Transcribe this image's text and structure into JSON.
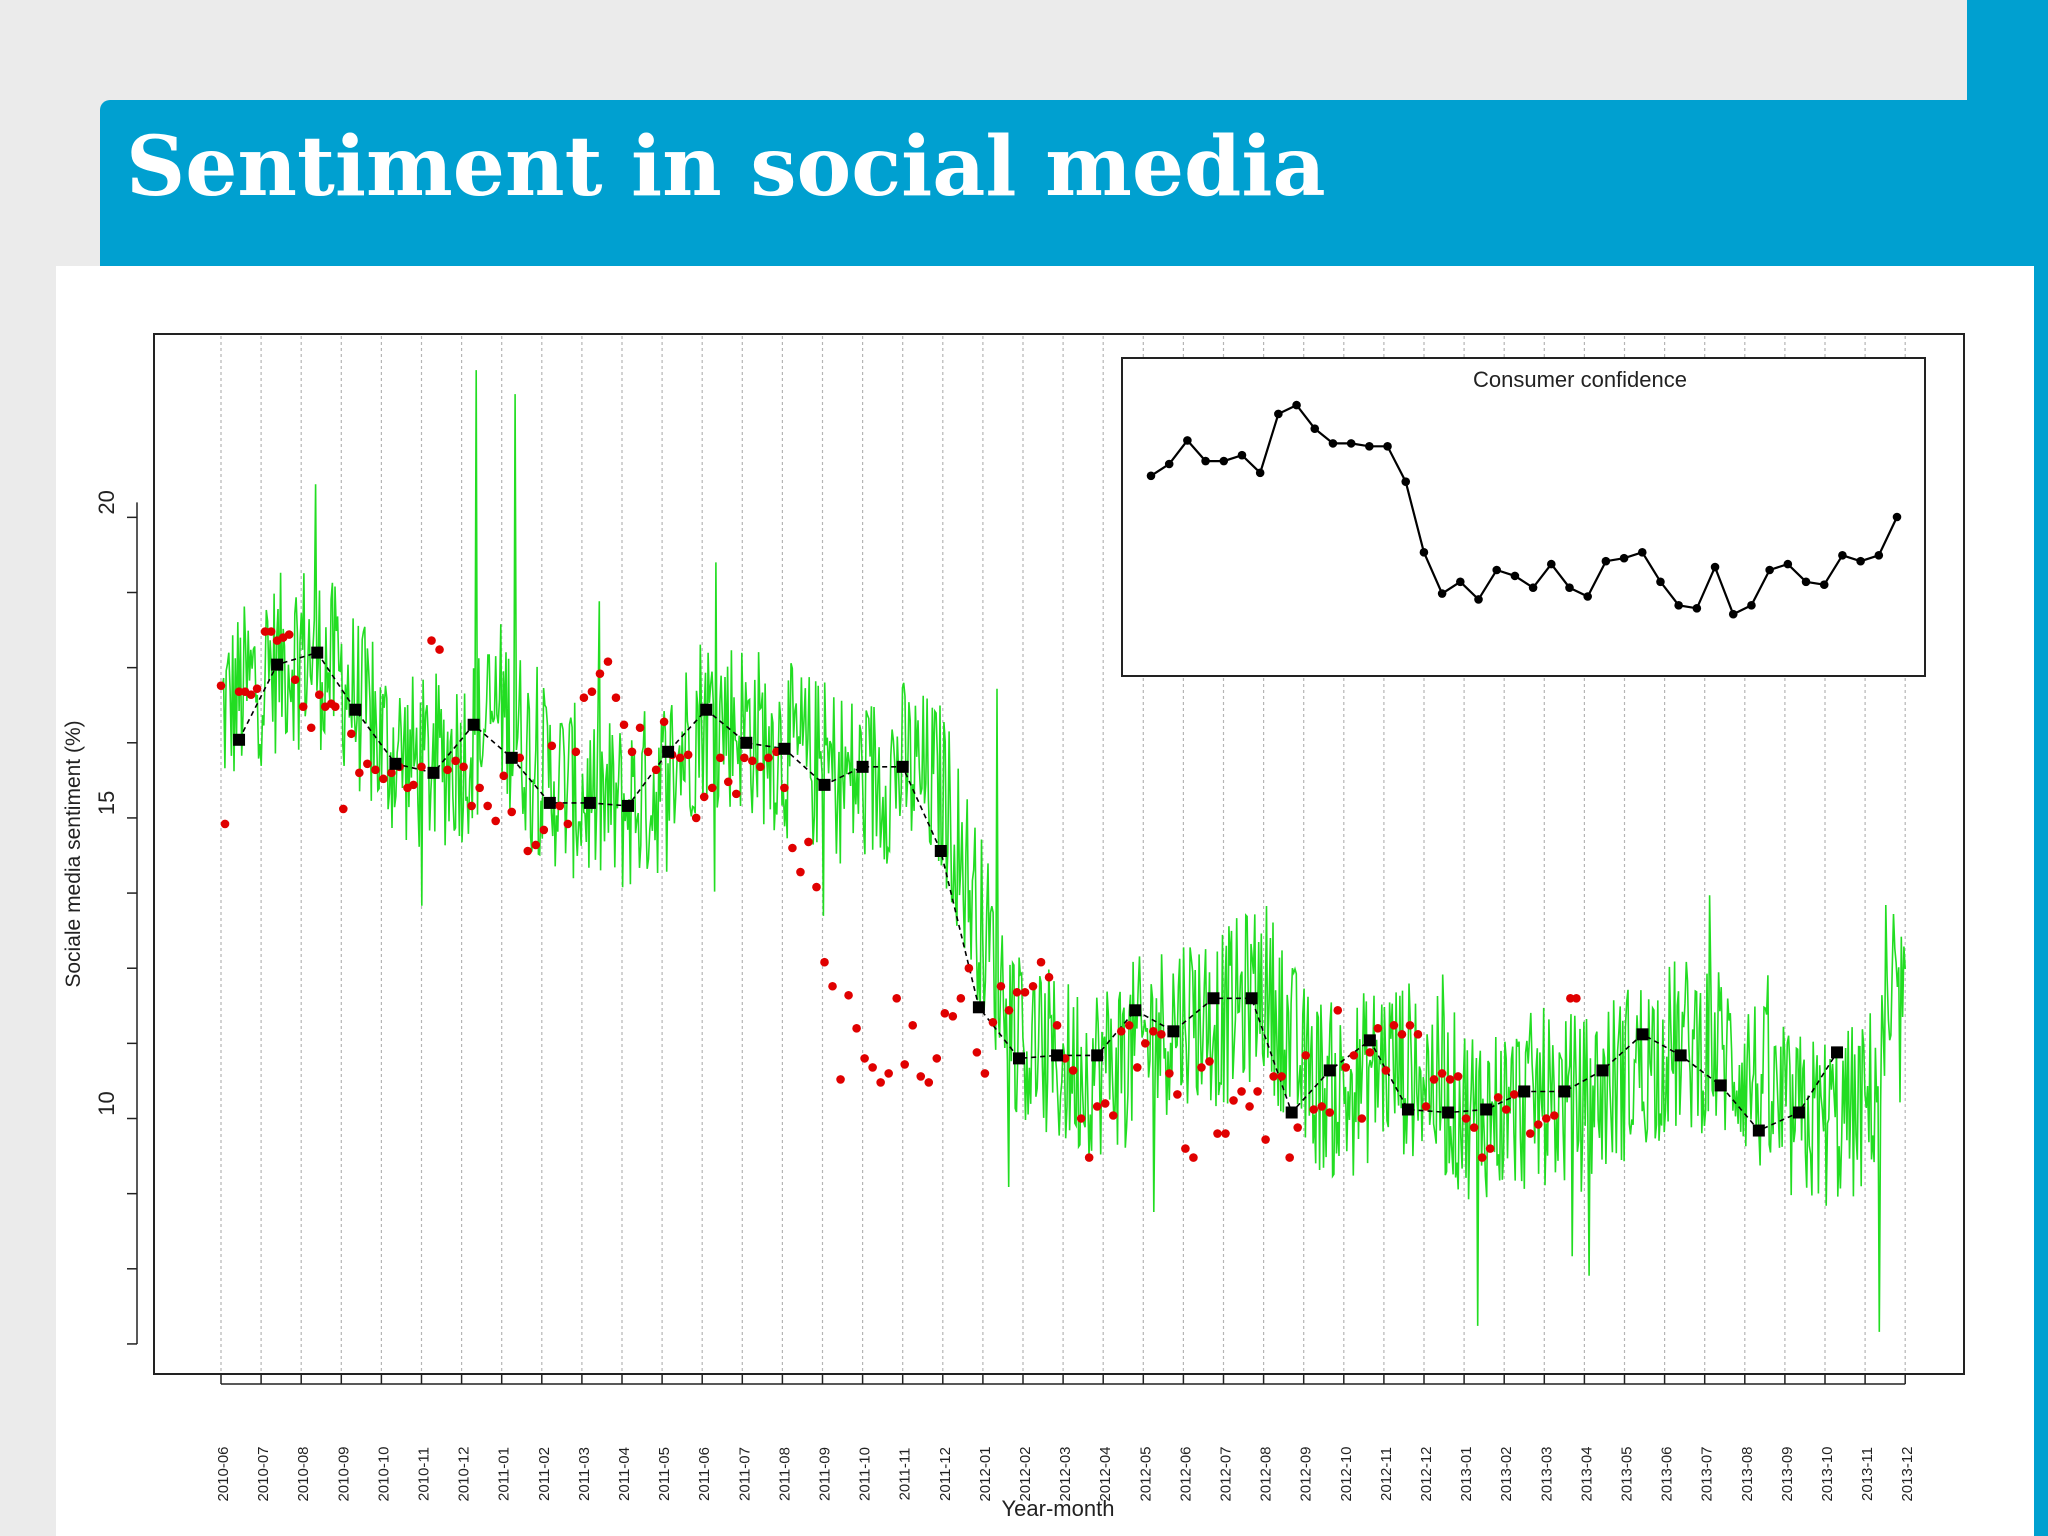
{
  "slide": {
    "title": "Sentiment in social media",
    "colors": {
      "banner": "#00a0d0",
      "background": "#ebebeb",
      "panel": "#ffffff"
    }
  },
  "chart_data": [
    {
      "type": "line",
      "role": "main",
      "title": "",
      "xlabel": "Year-month",
      "ylabel": "Sociale media sentiment (%)",
      "ylim": [
        5.5,
        22.8
      ],
      "yticks": [
        10,
        15,
        20
      ],
      "categories": [
        "2010-06",
        "2010-07",
        "2010-08",
        "2010-09",
        "2010-10",
        "2010-11",
        "2010-12",
        "2011-01",
        "2011-02",
        "2011-03",
        "2011-04",
        "2011-05",
        "2011-06",
        "2011-07",
        "2011-08",
        "2011-09",
        "2011-10",
        "2011-11",
        "2011-12",
        "2012-01",
        "2012-02",
        "2012-03",
        "2012-04",
        "2012-05",
        "2012-06",
        "2012-07",
        "2012-08",
        "2012-09",
        "2012-10",
        "2012-11",
        "2012-12",
        "2013-01",
        "2013-02",
        "2013-03",
        "2013-04",
        "2013-05",
        "2013-06",
        "2013-07",
        "2013-08",
        "2013-09",
        "2013-10",
        "2013-11",
        "2013-12"
      ],
      "grid": "vertical dotted lines at each month",
      "series": [
        {
          "style": "daily values, thin green line",
          "color": "#22dd22",
          "monthly_levels": [
            16.5,
            17.1,
            17.6,
            17.1,
            16.0,
            15.6,
            15.8,
            16.6,
            15.5,
            15.1,
            14.9,
            15.3,
            16.5,
            16.3,
            15.9,
            15.6,
            15.3,
            15.6,
            15.2,
            12.9,
            11.0,
            10.6,
            10.6,
            11.0,
            11.5,
            11.4,
            12.0,
            10.5,
            10.1,
            10.7,
            10.5,
            9.9,
            9.9,
            10.1,
            10.0,
            10.5,
            10.9,
            11.0,
            10.6,
            9.7,
            9.7,
            9.9,
            11.7
          ],
          "daily_spread": 1.5,
          "spikes": [
            {
              "x": "2010-12",
              "value": 22.2
            },
            {
              "x": "2011-01",
              "value": 21.8
            },
            {
              "x": "2010-08",
              "value": 20.3
            },
            {
              "x": "2011-06",
              "value": 19.0
            },
            {
              "x": "2012-01",
              "value": 16.9
            },
            {
              "x": "2013-01",
              "value": 6.3
            },
            {
              "x": "2013-11",
              "value": 6.2
            }
          ]
        },
        {
          "style": "weekly averages, red dots",
          "color": "#e00000",
          "values": [
            [
              0.0,
              16.95
            ],
            [
              0.1,
              14.65
            ],
            [
              0.45,
              16.85
            ],
            [
              0.6,
              16.85
            ],
            [
              0.75,
              16.8
            ],
            [
              0.9,
              16.9
            ],
            [
              1.1,
              17.85
            ],
            [
              1.25,
              17.85
            ],
            [
              1.4,
              17.7
            ],
            [
              1.55,
              17.75
            ],
            [
              1.7,
              17.8
            ],
            [
              1.85,
              17.05
            ],
            [
              2.05,
              16.6
            ],
            [
              2.25,
              16.25
            ],
            [
              2.45,
              16.8
            ],
            [
              2.6,
              16.6
            ],
            [
              2.75,
              16.65
            ],
            [
              2.85,
              16.6
            ],
            [
              3.05,
              14.9
            ],
            [
              3.25,
              16.15
            ],
            [
              3.45,
              15.5
            ],
            [
              3.65,
              15.65
            ],
            [
              3.85,
              15.55
            ],
            [
              4.05,
              15.4
            ],
            [
              4.25,
              15.5
            ],
            [
              4.45,
              15.6
            ],
            [
              4.65,
              15.25
            ],
            [
              4.8,
              15.3
            ],
            [
              5.0,
              15.6
            ],
            [
              5.25,
              17.7
            ],
            [
              5.45,
              17.55
            ],
            [
              5.65,
              15.55
            ],
            [
              5.85,
              15.7
            ],
            [
              6.05,
              15.6
            ],
            [
              6.25,
              14.95
            ],
            [
              6.45,
              15.25
            ],
            [
              6.65,
              14.95
            ],
            [
              6.85,
              14.7
            ],
            [
              7.05,
              15.45
            ],
            [
              7.25,
              14.85
            ],
            [
              7.45,
              15.75
            ],
            [
              7.65,
              14.2
            ],
            [
              7.85,
              14.3
            ],
            [
              8.05,
              14.55
            ],
            [
              8.25,
              15.95
            ],
            [
              8.45,
              14.95
            ],
            [
              8.65,
              14.65
            ],
            [
              8.85,
              15.85
            ],
            [
              9.05,
              16.75
            ],
            [
              9.25,
              16.85
            ],
            [
              9.45,
              17.15
            ],
            [
              9.65,
              17.35
            ],
            [
              9.85,
              16.75
            ],
            [
              10.05,
              16.3
            ],
            [
              10.25,
              15.85
            ],
            [
              10.45,
              16.25
            ],
            [
              10.65,
              15.85
            ],
            [
              10.85,
              15.55
            ],
            [
              11.05,
              16.35
            ],
            [
              11.25,
              15.8
            ],
            [
              11.45,
              15.75
            ],
            [
              11.65,
              15.8
            ],
            [
              11.85,
              14.75
            ],
            [
              12.05,
              15.1
            ],
            [
              12.25,
              15.25
            ],
            [
              12.45,
              15.75
            ],
            [
              12.65,
              15.35
            ],
            [
              12.85,
              15.15
            ],
            [
              13.05,
              15.75
            ],
            [
              13.25,
              15.7
            ],
            [
              13.45,
              15.6
            ],
            [
              13.65,
              15.75
            ],
            [
              13.85,
              15.85
            ],
            [
              14.05,
              15.25
            ],
            [
              14.25,
              14.25
            ],
            [
              14.45,
              13.85
            ],
            [
              14.65,
              14.35
            ],
            [
              14.85,
              13.6
            ],
            [
              15.05,
              12.35
            ],
            [
              15.25,
              11.95
            ],
            [
              15.45,
              10.4
            ],
            [
              15.65,
              11.8
            ],
            [
              15.85,
              11.25
            ],
            [
              16.05,
              10.75
            ],
            [
              16.25,
              10.6
            ],
            [
              16.45,
              10.35
            ],
            [
              16.65,
              10.5
            ],
            [
              16.85,
              11.75
            ],
            [
              17.05,
              10.65
            ],
            [
              17.25,
              11.3
            ],
            [
              17.45,
              10.45
            ],
            [
              17.65,
              10.35
            ],
            [
              17.85,
              10.75
            ],
            [
              18.05,
              11.5
            ],
            [
              18.25,
              11.45
            ],
            [
              18.45,
              11.75
            ],
            [
              18.65,
              12.25
            ],
            [
              18.85,
              10.85
            ],
            [
              19.05,
              10.5
            ],
            [
              19.25,
              11.35
            ],
            [
              19.45,
              11.95
            ],
            [
              19.65,
              11.55
            ],
            [
              19.85,
              11.85
            ],
            [
              20.05,
              11.85
            ],
            [
              20.25,
              11.95
            ],
            [
              20.45,
              12.35
            ],
            [
              20.65,
              12.1
            ],
            [
              20.85,
              11.3
            ],
            [
              21.05,
              10.75
            ],
            [
              21.25,
              10.55
            ],
            [
              21.45,
              9.75
            ],
            [
              21.65,
              9.1
            ],
            [
              21.85,
              9.95
            ],
            [
              22.05,
              10.0
            ],
            [
              22.25,
              9.8
            ],
            [
              22.45,
              11.2
            ],
            [
              22.65,
              11.3
            ],
            [
              22.85,
              10.6
            ],
            [
              23.05,
              11.0
            ],
            [
              23.25,
              11.2
            ],
            [
              23.45,
              11.15
            ],
            [
              23.65,
              10.5
            ],
            [
              23.85,
              10.15
            ],
            [
              24.05,
              9.25
            ],
            [
              24.25,
              9.1
            ],
            [
              24.45,
              10.6
            ],
            [
              24.65,
              10.7
            ],
            [
              24.85,
              9.5
            ],
            [
              25.05,
              9.5
            ],
            [
              25.25,
              10.05
            ],
            [
              25.45,
              10.2
            ],
            [
              25.65,
              9.95
            ],
            [
              25.85,
              10.2
            ],
            [
              26.05,
              9.4
            ],
            [
              26.25,
              10.45
            ],
            [
              26.45,
              10.45
            ],
            [
              26.65,
              9.1
            ],
            [
              26.85,
              9.6
            ],
            [
              27.05,
              10.8
            ],
            [
              27.25,
              9.9
            ],
            [
              27.45,
              9.95
            ],
            [
              27.65,
              9.85
            ],
            [
              27.85,
              11.55
            ],
            [
              28.05,
              10.6
            ],
            [
              28.25,
              10.8
            ],
            [
              28.45,
              9.75
            ],
            [
              28.65,
              10.85
            ],
            [
              28.85,
              11.25
            ],
            [
              29.05,
              10.55
            ],
            [
              29.25,
              11.3
            ],
            [
              29.45,
              11.15
            ],
            [
              29.65,
              11.3
            ],
            [
              29.85,
              11.15
            ],
            [
              30.05,
              9.95
            ],
            [
              30.25,
              10.4
            ],
            [
              30.45,
              10.5
            ],
            [
              30.65,
              10.4
            ],
            [
              30.85,
              10.45
            ],
            [
              31.05,
              9.75
            ],
            [
              31.25,
              9.6
            ],
            [
              31.45,
              9.1
            ],
            [
              31.65,
              9.25
            ],
            [
              31.85,
              10.1
            ],
            [
              32.05,
              9.9
            ],
            [
              32.25,
              10.15
            ],
            [
              32.45,
              10.2
            ],
            [
              32.65,
              9.5
            ],
            [
              32.85,
              9.65
            ],
            [
              33.05,
              9.75
            ],
            [
              33.25,
              9.8
            ],
            [
              33.45,
              10.2
            ],
            [
              33.65,
              11.75
            ],
            [
              33.8,
              11.75
            ]
          ]
        },
        {
          "style": "monthly averages, black squares joined by dashed line",
          "color": "#000000",
          "values": [
            [
              0.45,
              16.05
            ],
            [
              1.4,
              17.3
            ],
            [
              2.4,
              17.5
            ],
            [
              3.35,
              16.55
            ],
            [
              4.35,
              15.65
            ],
            [
              5.3,
              15.5
            ],
            [
              6.3,
              16.3
            ],
            [
              7.25,
              15.75
            ],
            [
              8.2,
              15.0
            ],
            [
              9.2,
              15.0
            ],
            [
              10.15,
              14.95
            ],
            [
              11.15,
              15.85
            ],
            [
              12.1,
              16.55
            ],
            [
              13.1,
              16.0
            ],
            [
              14.05,
              15.9
            ],
            [
              15.05,
              15.3
            ],
            [
              16.0,
              15.6
            ],
            [
              17.0,
              15.6
            ],
            [
              17.95,
              14.2
            ],
            [
              18.9,
              11.6
            ],
            [
              19.9,
              10.75
            ],
            [
              20.85,
              10.8
            ],
            [
              21.85,
              10.8
            ],
            [
              22.8,
              11.55
            ],
            [
              23.75,
              11.2
            ],
            [
              24.75,
              11.75
            ],
            [
              25.7,
              11.75
            ],
            [
              26.7,
              9.85
            ],
            [
              27.65,
              10.55
            ],
            [
              28.65,
              11.05
            ],
            [
              29.6,
              9.9
            ],
            [
              30.6,
              9.85
            ],
            [
              31.55,
              9.9
            ],
            [
              32.5,
              10.2
            ],
            [
              33.5,
              10.2
            ],
            [
              34.45,
              10.55
            ],
            [
              35.45,
              11.15
            ],
            [
              36.4,
              10.8
            ],
            [
              37.4,
              10.3
            ],
            [
              38.35,
              9.55
            ],
            [
              39.35,
              9.85
            ],
            [
              40.3,
              10.85
            ]
          ]
        }
      ]
    },
    {
      "type": "line",
      "role": "inset",
      "title": "Consumer confidence",
      "xlabel": "",
      "ylabel": "",
      "ylim": [
        -50,
        4
      ],
      "values": [
        -16.0,
        -14.0,
        -10.0,
        -13.5,
        -13.5,
        -12.5,
        -15.5,
        -5.5,
        -4.0,
        -8.0,
        -10.5,
        -10.5,
        -11.0,
        -11.0,
        -17.0,
        -29.0,
        -36.0,
        -34.0,
        -37.0,
        -32.0,
        -33.0,
        -35.0,
        -31.0,
        -35.0,
        -36.5,
        -30.5,
        -30.0,
        -29.0,
        -34.0,
        -38.0,
        -38.5,
        -31.5,
        -39.5,
        -38.0,
        -32.0,
        -31.0,
        -34.0,
        -34.5,
        -29.5,
        -30.5,
        -29.5,
        -23.0
      ]
    }
  ]
}
